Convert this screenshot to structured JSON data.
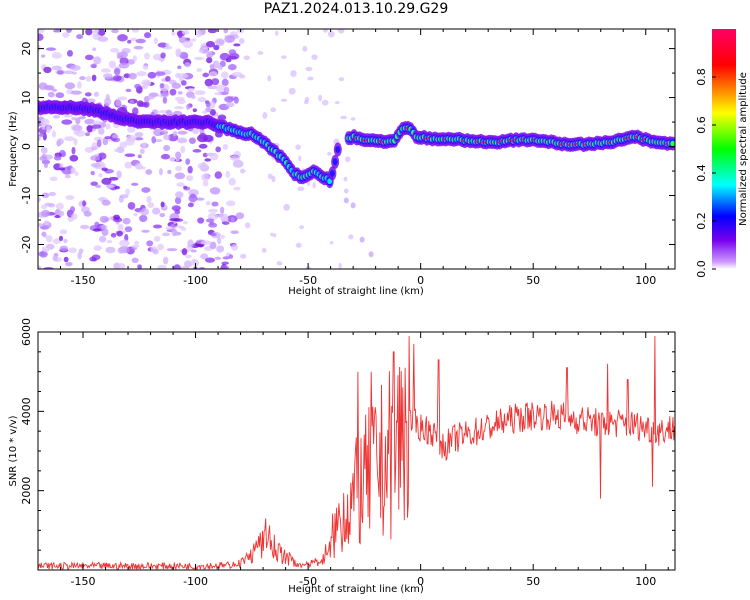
{
  "title": "PAZ1.2024.013.10.29.G29",
  "chart_data": [
    {
      "type": "heatmap",
      "xlabel": "Height of straight line (km)",
      "ylabel": "Frequency (Hz)",
      "xlim": [
        -170,
        113
      ],
      "ylim": [
        -25,
        24
      ],
      "xticks": [
        -150,
        -100,
        -50,
        0,
        50,
        100
      ],
      "yticks": [
        -20,
        -10,
        0,
        10,
        20
      ],
      "ridge": [
        [
          -168,
          8
        ],
        [
          -155,
          8
        ],
        [
          -145,
          7.5
        ],
        [
          -135,
          6
        ],
        [
          -125,
          5
        ],
        [
          -115,
          5
        ],
        [
          -105,
          5
        ],
        [
          -95,
          5
        ],
        [
          -88,
          4
        ],
        [
          -82,
          3
        ],
        [
          -75,
          2.5
        ],
        [
          -70,
          1
        ],
        [
          -65,
          -1
        ],
        [
          -60,
          -3
        ],
        [
          -56,
          -5.5
        ],
        [
          -52,
          -6.5
        ],
        [
          -48,
          -5
        ],
        [
          -44,
          -6
        ],
        [
          -40,
          -7
        ],
        [
          -36,
          1
        ],
        [
          -30,
          2
        ],
        [
          -20,
          1
        ],
        [
          -12,
          1
        ],
        [
          -8,
          3.5
        ],
        [
          -5,
          4
        ],
        [
          -2,
          2
        ],
        [
          5,
          1.5
        ],
        [
          15,
          1.5
        ],
        [
          25,
          1
        ],
        [
          35,
          1
        ],
        [
          45,
          1.5
        ],
        [
          55,
          1
        ],
        [
          65,
          0.5
        ],
        [
          75,
          0.5
        ],
        [
          85,
          1
        ],
        [
          95,
          2
        ],
        [
          103,
          1
        ],
        [
          110,
          0.5
        ]
      ],
      "colorbar": {
        "label": "Normalized spectral amplitude",
        "ticks": [
          0.0,
          0.2,
          0.4,
          0.6,
          0.8
        ],
        "tick_labels": [
          "0.0",
          "0.2",
          "0.4",
          "0.6",
          "0.8"
        ],
        "range": [
          0,
          1
        ],
        "colors": [
          "#ffffff",
          "#cc99ff",
          "#7700ee",
          "#0000ff",
          "#00ffff",
          "#00ff00",
          "#ffff00",
          "#ff0000",
          "#ff0066"
        ]
      }
    },
    {
      "type": "line",
      "xlabel": "Height of straight line (km)",
      "ylabel": "SNR (10 * v/v)",
      "xlim": [
        -170,
        113
      ],
      "ylim": [
        0,
        6000
      ],
      "xticks": [
        -150,
        -100,
        -50,
        0,
        50,
        100
      ],
      "yticks": [
        2000,
        4000,
        6000
      ],
      "color": "#ee3333",
      "envelope": [
        [
          -170,
          100
        ],
        [
          -100,
          100
        ],
        [
          -85,
          120
        ],
        [
          -78,
          300
        ],
        [
          -72,
          700
        ],
        [
          -68,
          1100
        ],
        [
          -65,
          700
        ],
        [
          -60,
          400
        ],
        [
          -55,
          200
        ],
        [
          -50,
          150
        ],
        [
          -45,
          300
        ],
        [
          -40,
          700
        ],
        [
          -35,
          1400
        ],
        [
          -30,
          1800
        ],
        [
          -25,
          2200
        ],
        [
          -20,
          2600
        ],
        [
          -15,
          2800
        ],
        [
          -10,
          3300
        ],
        [
          -5,
          3800
        ],
        [
          0,
          3600
        ],
        [
          5,
          3500
        ],
        [
          10,
          3100
        ],
        [
          15,
          3300
        ],
        [
          20,
          3400
        ],
        [
          30,
          3600
        ],
        [
          40,
          3800
        ],
        [
          50,
          3900
        ],
        [
          60,
          3900
        ],
        [
          70,
          3800
        ],
        [
          80,
          3700
        ],
        [
          90,
          3700
        ],
        [
          100,
          3600
        ],
        [
          106,
          3500
        ],
        [
          113,
          3600
        ]
      ],
      "spikes": [
        [
          -3,
          5700
        ],
        [
          -28,
          5000
        ],
        [
          -22,
          5000
        ],
        [
          -12,
          5500
        ],
        [
          -7,
          5100
        ],
        [
          8,
          5300
        ],
        [
          65,
          5100
        ],
        [
          83,
          5200
        ],
        [
          92,
          4800
        ],
        [
          104,
          5900
        ],
        [
          80,
          1800
        ],
        [
          103,
          2100
        ]
      ]
    }
  ]
}
